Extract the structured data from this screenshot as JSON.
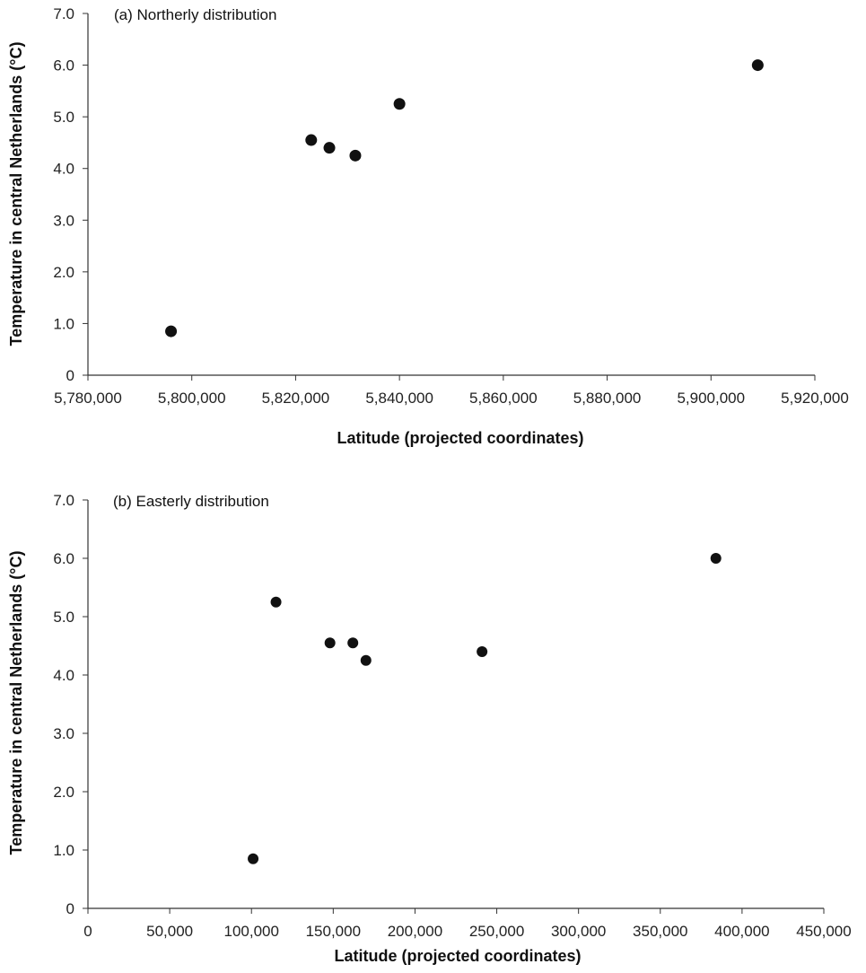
{
  "chart_data": [
    {
      "type": "scatter",
      "title": "(a) Northerly distribution",
      "xlabel": "Latitude (projected coordinates)",
      "ylabel": "Temperature in central Netherlands (°C)",
      "xlim": [
        5780000,
        5920000
      ],
      "ylim": [
        0,
        7
      ],
      "x_ticks": [
        "5,780,000",
        "5,800,000",
        "5,820,000",
        "5,840,000",
        "5,860,000",
        "5,880,000",
        "5,900,000",
        "5,920,000"
      ],
      "y_ticks": [
        "0",
        "1.0",
        "2.0",
        "3.0",
        "4.0",
        "5.0",
        "6.0",
        "7.0"
      ],
      "grid": false,
      "points": [
        {
          "x": 5796000,
          "y": 0.85
        },
        {
          "x": 5823000,
          "y": 4.55
        },
        {
          "x": 5826500,
          "y": 4.4
        },
        {
          "x": 5831500,
          "y": 4.25
        },
        {
          "x": 5840000,
          "y": 5.25
        },
        {
          "x": 5909000,
          "y": 6.0
        }
      ],
      "marker_color": "#111111"
    },
    {
      "type": "scatter",
      "title": "(b) Easterly distribution",
      "xlabel": "Latitude (projected coordinates)",
      "ylabel": "Temperature in central Netherlands (°C)",
      "xlim": [
        0,
        450000
      ],
      "ylim": [
        0,
        7
      ],
      "x_ticks": [
        "0",
        "50,000",
        "100,000",
        "150,000",
        "200,000",
        "250,000",
        "300,000",
        "350,000",
        "400,000",
        "450,000"
      ],
      "y_ticks": [
        "0",
        "1.0",
        "2.0",
        "3.0",
        "4.0",
        "5.0",
        "6.0",
        "7.0"
      ],
      "grid": false,
      "points": [
        {
          "x": 101000,
          "y": 0.85
        },
        {
          "x": 115000,
          "y": 5.25
        },
        {
          "x": 148000,
          "y": 4.55
        },
        {
          "x": 162000,
          "y": 4.55
        },
        {
          "x": 170000,
          "y": 4.25
        },
        {
          "x": 241000,
          "y": 4.4
        },
        {
          "x": 384000,
          "y": 6.0
        }
      ],
      "marker_color": "#111111"
    }
  ]
}
